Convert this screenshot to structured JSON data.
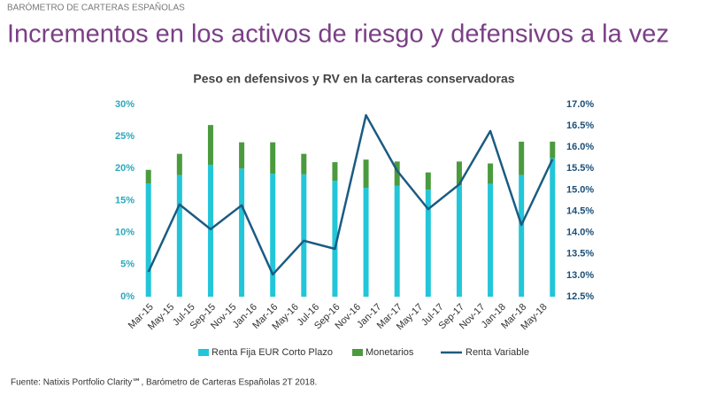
{
  "header": {
    "kicker": "BARÓMETRO DE CARTERAS ESPAÑOLAS",
    "title": "Incrementos en los activos de riesgo y defensivos a la vez"
  },
  "chart_data": {
    "type": "bar",
    "title": "Peso en defensivos y RV en la carteras conservadoras",
    "x": [
      0,
      3,
      6,
      9,
      12,
      15,
      18,
      21,
      24,
      27,
      30,
      33,
      36,
      39
    ],
    "xlim": [
      -1,
      40
    ],
    "xticks": [
      {
        "value": 0,
        "label": "Mar-15"
      },
      {
        "value": 2,
        "label": "May-15"
      },
      {
        "value": 4,
        "label": "Jul-15"
      },
      {
        "value": 6,
        "label": "Sep-15"
      },
      {
        "value": 8,
        "label": "Nov-15"
      },
      {
        "value": 10,
        "label": "Jan-16"
      },
      {
        "value": 12,
        "label": "Mar-16"
      },
      {
        "value": 14,
        "label": "May-16"
      },
      {
        "value": 16,
        "label": "Jul-16"
      },
      {
        "value": 18,
        "label": "Sep-16"
      },
      {
        "value": 20,
        "label": "Nov-16"
      },
      {
        "value": 22,
        "label": "Jan-17"
      },
      {
        "value": 24,
        "label": "Mar-17"
      },
      {
        "value": 26,
        "label": "May-17"
      },
      {
        "value": 28,
        "label": "Jul-17"
      },
      {
        "value": 30,
        "label": "Sep-17"
      },
      {
        "value": 32,
        "label": "Nov-17"
      },
      {
        "value": 34,
        "label": "Jan-18"
      },
      {
        "value": 36,
        "label": "Mar-18"
      },
      {
        "value": 38,
        "label": "May-18"
      }
    ],
    "ylim": [
      0,
      30
    ],
    "yticks": [
      {
        "value": 0,
        "label": "0%"
      },
      {
        "value": 5,
        "label": "5%"
      },
      {
        "value": 10,
        "label": "10%"
      },
      {
        "value": 15,
        "label": "15%"
      },
      {
        "value": 20,
        "label": "20%"
      },
      {
        "value": 25,
        "label": "25%"
      },
      {
        "value": 30,
        "label": "30%"
      }
    ],
    "y2lim": [
      12.5,
      17.0
    ],
    "y2ticks": [
      {
        "value": 12.5,
        "label": "12.5%"
      },
      {
        "value": 13.0,
        "label": "13.0%"
      },
      {
        "value": 13.5,
        "label": "13.5%"
      },
      {
        "value": 14.0,
        "label": "14.0%"
      },
      {
        "value": 14.5,
        "label": "14.5%"
      },
      {
        "value": 15.0,
        "label": "15.0%"
      },
      {
        "value": 15.5,
        "label": "15.5%"
      },
      {
        "value": 16.0,
        "label": "16.0%"
      },
      {
        "value": 16.5,
        "label": "16.5%"
      },
      {
        "value": 17.0,
        "label": "17.0%"
      }
    ],
    "stacked": true,
    "series": [
      {
        "name": "Renta Fija EUR Corto Plazo",
        "color": "#22c6d8",
        "values": [
          17.7,
          19.0,
          20.6,
          20.0,
          19.2,
          19.1,
          18.1,
          17.0,
          17.3,
          16.7,
          17.4,
          17.6,
          19.0,
          21.6
        ]
      },
      {
        "name": "Monetarios",
        "color": "#4b9b3e",
        "values": [
          2.1,
          3.3,
          6.2,
          4.1,
          4.9,
          3.2,
          2.9,
          4.4,
          3.8,
          2.7,
          3.7,
          3.2,
          5.2,
          2.6
        ]
      },
      {
        "name": "Renta Variable",
        "color": "#1b5b82",
        "type": "line",
        "axis": "y2",
        "values": [
          13.08,
          14.66,
          14.08,
          14.64,
          13.02,
          13.81,
          13.62,
          16.75,
          15.45,
          14.55,
          15.13,
          16.38,
          14.18,
          15.72
        ]
      }
    ]
  },
  "source": "Fuente: Natixis Portfolio Clarity℠, Barómetro de Carteras Españolas 2T 2018."
}
